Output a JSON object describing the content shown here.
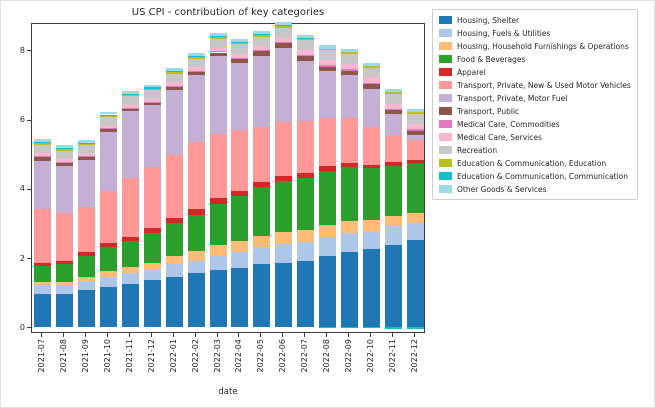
{
  "chart_data": {
    "type": "bar",
    "stacked": true,
    "title": "US CPI - contribution of key categories",
    "xlabel": "date",
    "ylabel": "",
    "ylim": [
      -0.15,
      8.8
    ],
    "yticks": [
      0,
      2,
      4,
      6,
      8
    ],
    "grid": false,
    "legend_position": "outside-right",
    "categories": [
      "2021-07",
      "2021-08",
      "2021-09",
      "2021-10",
      "2021-11",
      "2021-12",
      "2022-01",
      "2022-02",
      "2022-03",
      "2022-04",
      "2022-05",
      "2022-06",
      "2022-07",
      "2022-08",
      "2022-09",
      "2022-10",
      "2022-11",
      "2022-12"
    ],
    "series": [
      {
        "name": "Housing, Shelter",
        "color": "#1f77b4",
        "values": [
          0.95,
          0.95,
          1.05,
          1.15,
          1.25,
          1.35,
          1.45,
          1.55,
          1.65,
          1.7,
          1.8,
          1.85,
          1.9,
          2.05,
          2.15,
          2.25,
          2.35,
          2.5
        ]
      },
      {
        "name": "Housing, Fuels & Utilities",
        "color": "#aec7e8",
        "values": [
          0.25,
          0.25,
          0.28,
          0.3,
          0.3,
          0.3,
          0.35,
          0.35,
          0.4,
          0.45,
          0.5,
          0.55,
          0.55,
          0.55,
          0.55,
          0.5,
          0.55,
          0.5
        ]
      },
      {
        "name": "Housing, Household Furnishings & Operations",
        "color": "#ffbb78",
        "values": [
          0.1,
          0.1,
          0.12,
          0.15,
          0.17,
          0.2,
          0.25,
          0.28,
          0.3,
          0.32,
          0.33,
          0.35,
          0.35,
          0.35,
          0.35,
          0.33,
          0.3,
          0.28
        ]
      },
      {
        "name": "Food & Beverages",
        "color": "#2ca02c",
        "values": [
          0.45,
          0.5,
          0.6,
          0.7,
          0.75,
          0.85,
          0.95,
          1.05,
          1.2,
          1.3,
          1.4,
          1.45,
          1.5,
          1.55,
          1.55,
          1.5,
          1.45,
          1.45
        ]
      },
      {
        "name": "Apparel",
        "color": "#d62728",
        "values": [
          0.1,
          0.1,
          0.1,
          0.13,
          0.13,
          0.15,
          0.15,
          0.17,
          0.17,
          0.15,
          0.15,
          0.15,
          0.13,
          0.13,
          0.13,
          0.1,
          0.1,
          0.1
        ]
      },
      {
        "name": "Transport, Private, New & Used Motor Vehicles",
        "color": "#ff9896",
        "values": [
          1.55,
          1.4,
          1.3,
          1.5,
          1.7,
          1.75,
          1.8,
          1.95,
          1.85,
          1.75,
          1.6,
          1.55,
          1.5,
          1.4,
          1.3,
          1.1,
          0.8,
          0.55
        ]
      },
      {
        "name": "Transport, Private, Motor Fuel",
        "color": "#c5b0d5",
        "values": [
          1.4,
          1.35,
          1.38,
          1.7,
          1.92,
          1.8,
          1.9,
          1.92,
          2.25,
          1.95,
          2.05,
          2.15,
          1.75,
          1.35,
          1.25,
          1.1,
          0.6,
          0.15
        ]
      },
      {
        "name": "Transport, Public",
        "color": "#8c564b",
        "values": [
          0.12,
          0.1,
          0.08,
          0.08,
          0.08,
          0.08,
          0.08,
          0.09,
          0.1,
          0.12,
          0.12,
          0.13,
          0.13,
          0.12,
          0.12,
          0.12,
          0.1,
          0.12
        ]
      },
      {
        "name": "Medical Care, Commodities",
        "color": "#e377c2",
        "values": [
          0.02,
          0.02,
          0.02,
          0.02,
          0.02,
          0.02,
          0.03,
          0.03,
          0.03,
          0.03,
          0.03,
          0.04,
          0.04,
          0.05,
          0.05,
          0.05,
          0.05,
          0.05
        ]
      },
      {
        "name": "Medical Care, Services",
        "color": "#f7b6d2",
        "values": [
          0.07,
          0.07,
          0.07,
          0.08,
          0.08,
          0.09,
          0.1,
          0.1,
          0.1,
          0.11,
          0.12,
          0.13,
          0.14,
          0.15,
          0.15,
          0.15,
          0.14,
          0.15
        ]
      },
      {
        "name": "Recreation",
        "color": "#c7c7c7",
        "values": [
          0.25,
          0.25,
          0.25,
          0.25,
          0.25,
          0.25,
          0.25,
          0.25,
          0.27,
          0.28,
          0.28,
          0.28,
          0.28,
          0.28,
          0.28,
          0.28,
          0.28,
          0.3
        ]
      },
      {
        "name": "Education & Communication, Education",
        "color": "#bcbd22",
        "values": [
          0.04,
          0.04,
          0.04,
          0.04,
          0.04,
          0.04,
          0.04,
          0.04,
          0.04,
          0.05,
          0.05,
          0.05,
          0.05,
          0.05,
          0.05,
          0.05,
          0.05,
          0.05
        ]
      },
      {
        "name": "Education & Communication, Communication",
        "color": "#17becf",
        "values": [
          0.03,
          0.03,
          0.03,
          0.03,
          0.03,
          0.03,
          0.03,
          0.03,
          0.03,
          0.02,
          0.02,
          0.02,
          0.01,
          -0.02,
          -0.03,
          -0.04,
          -0.05,
          -0.06
        ]
      },
      {
        "name": "Other Goods & Services",
        "color": "#9edae5",
        "values": [
          0.08,
          0.08,
          0.08,
          0.08,
          0.08,
          0.08,
          0.08,
          0.09,
          0.09,
          0.09,
          0.1,
          0.1,
          0.1,
          0.1,
          0.1,
          0.1,
          0.1,
          0.1
        ]
      }
    ]
  }
}
